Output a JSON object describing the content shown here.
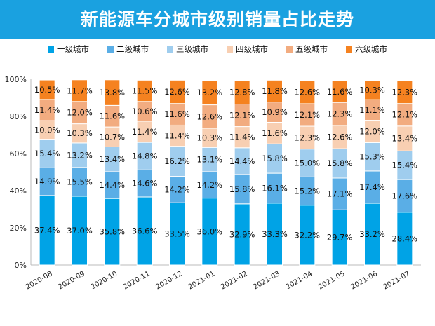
{
  "chart_data": {
    "type": "bar",
    "stacked": true,
    "title": "新能源车分城市级别销量占比走势",
    "categories": [
      "2020-08",
      "2020-09",
      "2020-10",
      "2020-11",
      "2020-12",
      "2021-01",
      "2021-02",
      "2021-03",
      "2021-04",
      "2021-05",
      "2021-06",
      "2021-07"
    ],
    "ylim": [
      0,
      100
    ],
    "yticks": [
      "0%",
      "20%",
      "40%",
      "60%",
      "80%",
      "100%"
    ],
    "legend_position": "top",
    "grid": false,
    "series": [
      {
        "name": "一级城市",
        "color": "#00a3e6",
        "values": [
          37.4,
          37.0,
          35.8,
          36.6,
          33.5,
          36.0,
          32.9,
          33.3,
          32.2,
          29.7,
          33.2,
          28.4
        ]
      },
      {
        "name": "二级城市",
        "color": "#5aaee6",
        "values": [
          14.9,
          15.5,
          14.4,
          14.6,
          14.2,
          14.2,
          15.8,
          16.1,
          15.2,
          17.1,
          17.4,
          17.6
        ]
      },
      {
        "name": "三级城市",
        "color": "#9fcdee",
        "values": [
          15.4,
          13.2,
          13.4,
          14.8,
          16.2,
          13.1,
          14.4,
          15.8,
          15.0,
          15.8,
          15.3,
          15.4
        ]
      },
      {
        "name": "四级城市",
        "color": "#f8cfb2",
        "values": [
          10.0,
          10.3,
          10.7,
          11.4,
          11.4,
          10.3,
          11.4,
          11.6,
          12.3,
          12.6,
          12.0,
          13.4
        ]
      },
      {
        "name": "五级城市",
        "color": "#f2ac80",
        "values": [
          11.4,
          12.0,
          11.6,
          10.6,
          11.6,
          12.6,
          12.1,
          10.9,
          12.1,
          12.3,
          11.1,
          12.1
        ]
      },
      {
        "name": "六级城市",
        "color": "#f58220",
        "values": [
          10.5,
          11.7,
          13.8,
          11.5,
          12.6,
          13.2,
          12.8,
          11.8,
          12.6,
          11.6,
          10.3,
          12.3
        ]
      }
    ]
  }
}
